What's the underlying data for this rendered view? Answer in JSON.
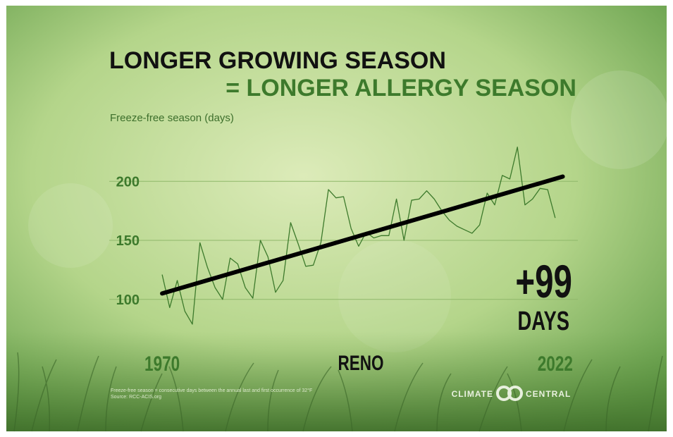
{
  "chart_data": {
    "type": "line",
    "title": "LONGER GROWING SEASON",
    "subtitle": "= LONGER ALLERGY SEASON",
    "y_label": "Freeze-free season (days)",
    "location": "RENO",
    "annotation": {
      "value": "+99",
      "unit": "DAYS"
    },
    "x": [
      1970,
      1971,
      1972,
      1973,
      1974,
      1975,
      1976,
      1977,
      1978,
      1979,
      1980,
      1981,
      1982,
      1983,
      1984,
      1985,
      1986,
      1987,
      1988,
      1989,
      1990,
      1991,
      1992,
      1993,
      1994,
      1995,
      1996,
      1997,
      1998,
      1999,
      2000,
      2001,
      2002,
      2003,
      2004,
      2005,
      2006,
      2007,
      2008,
      2009,
      2010,
      2011,
      2012,
      2013,
      2014,
      2015,
      2016,
      2017,
      2018,
      2019,
      2020,
      2021,
      2022
    ],
    "xlim": [
      1963,
      2025
    ],
    "xticks": [
      1970,
      2022
    ],
    "ylim": [
      70,
      230
    ],
    "yticks": [
      100,
      150,
      200
    ],
    "grid": true,
    "series": [
      {
        "color": "#3d7a2c",
        "values": [
          121,
          93,
          116,
          90,
          79,
          148,
          127,
          110,
          100,
          135,
          130,
          110,
          101,
          150,
          136,
          106,
          116,
          165,
          147,
          128,
          129,
          148,
          193,
          186,
          187,
          160,
          145,
          157,
          152,
          154,
          154,
          185,
          150,
          184,
          185,
          192,
          185,
          175,
          167,
          162,
          159,
          156,
          163,
          190,
          180,
          205,
          202,
          229,
          180,
          185,
          194,
          193,
          169
        ]
      }
    ],
    "trend": {
      "color": "#000000",
      "x": [
        1970,
        2023
      ],
      "values": [
        105,
        204
      ]
    }
  },
  "footer": {
    "notes": [
      "Freeze-free season = consecutive days between the annual last and first occurrence of 32°F",
      "Source: RCC-ACIS.org"
    ],
    "logo": [
      "CLIMATE",
      "CENTRAL"
    ]
  }
}
